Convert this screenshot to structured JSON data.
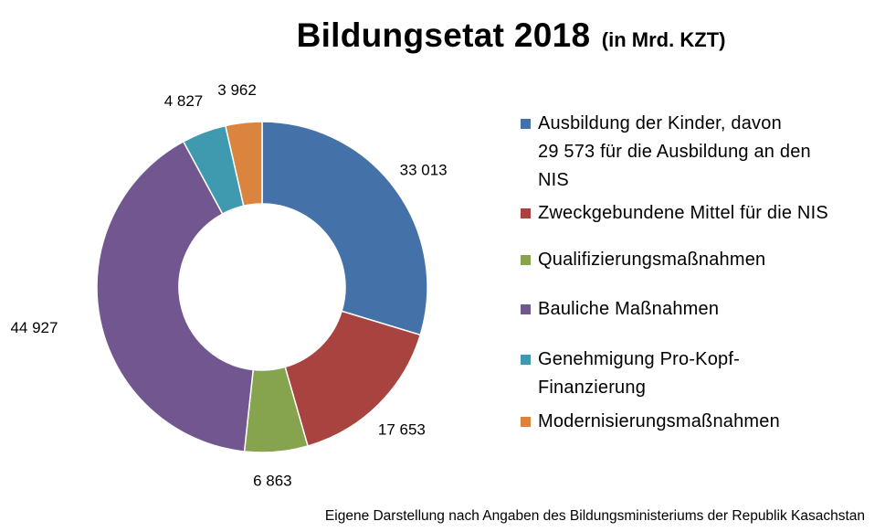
{
  "chart_data": {
    "type": "donut",
    "title": "Bildungsetat 2018",
    "unit": "(in Mrd. KZT)",
    "categories": [
      "Ausbildung der Kinder, davon 29 573 für die Ausbildung an den NIS",
      "Zweckgebundene Mittel für die NIS",
      "Qualifizierungsmaßnahmen",
      "Bauliche Maßnahmen",
      "Genehmigung Pro-Kopf-Finanzierung",
      "Modernisierungsmaßnahmen"
    ],
    "values": [
      33013,
      17653,
      6863,
      44927,
      4827,
      3962
    ],
    "data_labels": [
      "33 013",
      "17 653",
      "6 863",
      "44 927",
      "4 827",
      "3 962"
    ],
    "colors": [
      "#4472A8",
      "#A8433F",
      "#86A44D",
      "#715690",
      "#3F9AB0",
      "#DB843D"
    ],
    "legend_position": "right",
    "start_angle": "12 o'clock, clockwise"
  },
  "legend": {
    "items": [
      {
        "lines": [
          "Ausbildung der Kinder, davon",
          "29 573 für die Ausbildung an den",
          "NIS"
        ]
      },
      {
        "lines": [
          "Zweckgebundene Mittel für die NIS"
        ]
      },
      {
        "lines": [
          "Qualifizierungsmaßnahmen"
        ]
      },
      {
        "lines": [
          "Bauliche Maßnahmen"
        ]
      },
      {
        "lines": [
          "Genehmigung Pro-Kopf-",
          "Finanzierung"
        ]
      },
      {
        "lines": [
          "Modernisierungsmaßnahmen"
        ]
      }
    ]
  },
  "footnote": "Eigene Darstellung nach Angaben des Bildungsministeriums der Republik Kasachstan"
}
